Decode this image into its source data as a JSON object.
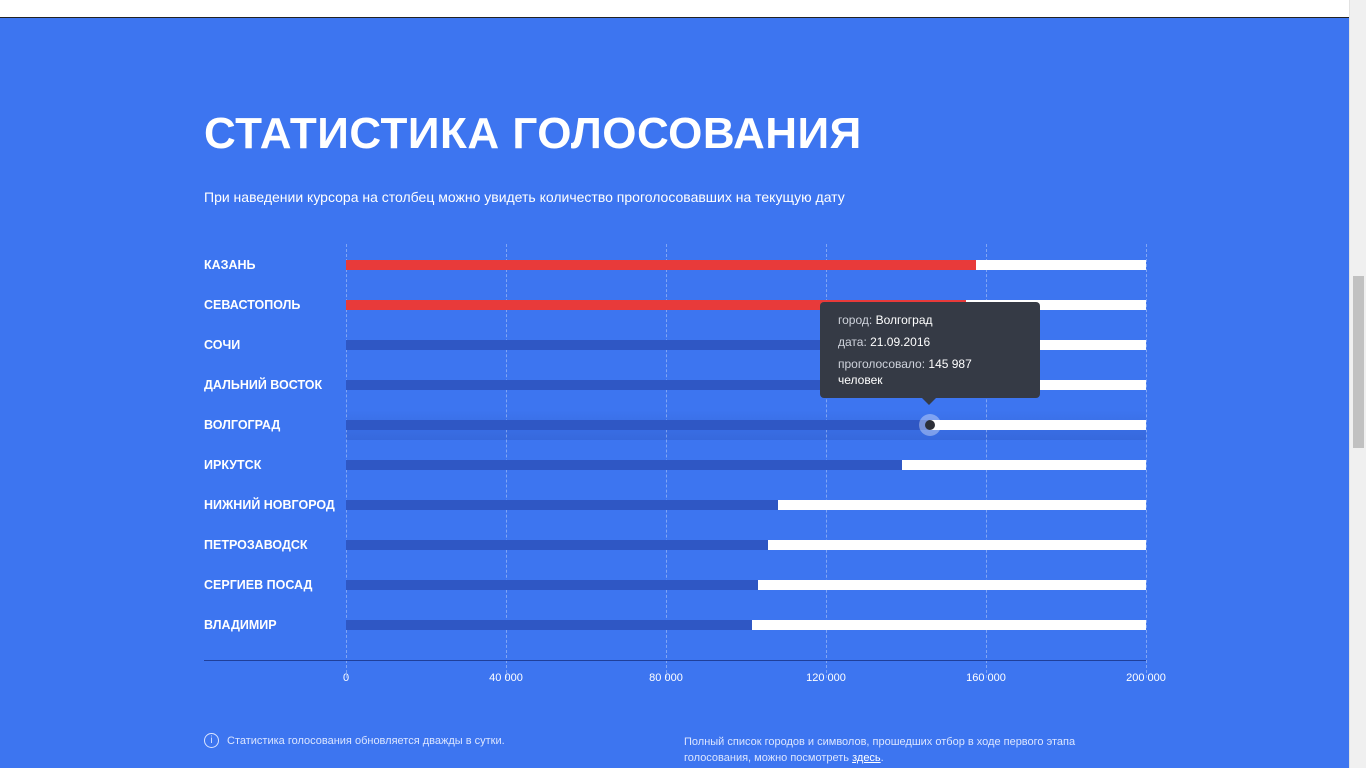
{
  "header": {
    "title": "СТАТИСТИКА ГОЛОСОВАНИЯ",
    "subtitle": "При наведении курсора на столбец можно увидеть количество проголосовавших на текущую дату"
  },
  "colors": {
    "background": "#3d75f0",
    "bar_default": "#2f57c4",
    "bar_leader": "#e83a3a",
    "track": "#ffffff",
    "tooltip_bg": "#353a45"
  },
  "chart_data": {
    "type": "bar",
    "orientation": "horizontal",
    "categories": [
      "КАЗАНЬ",
      "СЕВАСТОПОЛЬ",
      "СОЧИ",
      "ДАЛЬНИЙ ВОСТОК",
      "ВОЛГОГРАД",
      "ИРКУТСК",
      "НИЖНИЙ НОВГОРОД",
      "ПЕТРОЗАВОДСК",
      "СЕРГИЕВ ПОСАД",
      "ВЛАДИМИР"
    ],
    "values": [
      157500,
      155000,
      154000,
      152000,
      145987,
      139000,
      108000,
      105500,
      103000,
      101500
    ],
    "highlight": [
      true,
      true,
      false,
      false,
      false,
      false,
      false,
      false,
      false,
      false
    ],
    "xlim": [
      0,
      200000
    ],
    "ticks": [
      "0",
      "40 000",
      "80 000",
      "120 000",
      "160 000",
      "200 000"
    ],
    "tick_values": [
      0,
      40000,
      80000,
      120000,
      160000,
      200000
    ],
    "grid": true
  },
  "tooltip": {
    "city_key": "город:",
    "city_value": "Волгоград",
    "date_key": "дата:",
    "date_value": "21.09.2016",
    "votes_key": "проголосовало:",
    "votes_value": "145 987",
    "votes_unit": "человек"
  },
  "footer": {
    "info_icon": "i",
    "update_note": "Статистика голосования обновляется дважды в сутки.",
    "list_note": "Полный список городов и символов, прошедших отбор в ходе первого этапа голосования, можно посмотреть",
    "list_link": "здесь",
    "list_end": "."
  }
}
